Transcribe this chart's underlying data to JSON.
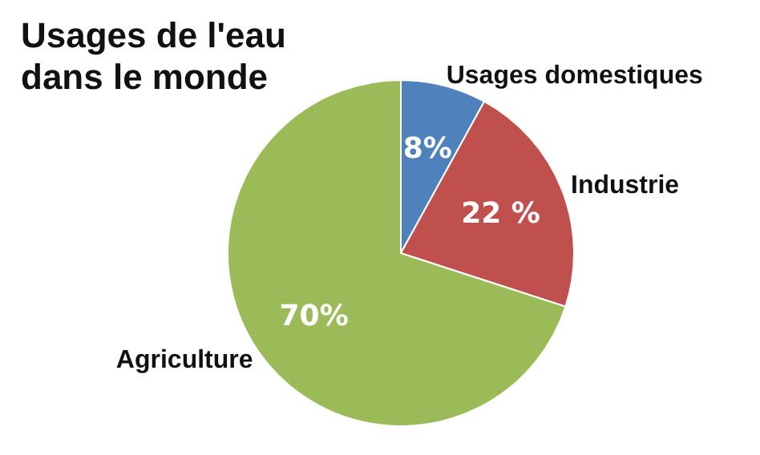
{
  "chart_data": {
    "type": "pie",
    "title": "Usages de l'eau\ndans le monde",
    "categories": [
      "Usages domestiques",
      "Industrie",
      "Agriculture"
    ],
    "values": [
      8,
      22,
      70
    ],
    "colors": [
      "#4f81bd",
      "#c0504d",
      "#9bbb59"
    ],
    "value_labels": [
      "8%",
      "22 %",
      "70%"
    ]
  }
}
